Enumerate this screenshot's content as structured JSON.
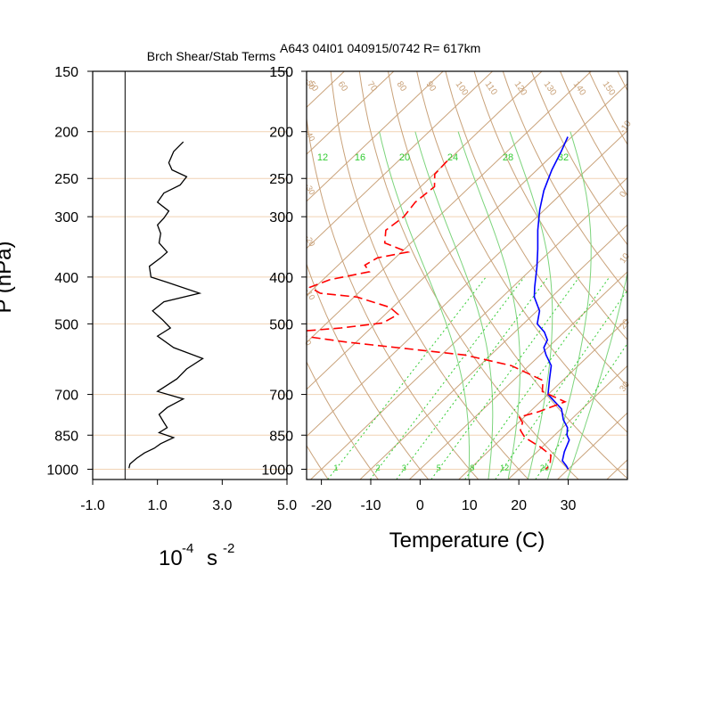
{
  "chart_data": [
    {
      "type": "line",
      "title": "Brch Shear/Stab Terms",
      "ylabel": "P (hPa)",
      "xunit_base": "10",
      "xunit_exp": "-4",
      "xunit_s": "s",
      "xunit_sexp": "-2",
      "xlim": [
        -1.0,
        5.0
      ],
      "ylim": [
        1050,
        150
      ],
      "xticks": [
        "-1.0",
        "1.0",
        "3.0",
        "5.0"
      ],
      "xtick_values": [
        -1.0,
        1.0,
        3.0,
        5.0
      ],
      "yticks": [
        "150",
        "200",
        "250",
        "300",
        "400",
        "500",
        "700",
        "850",
        "1000"
      ],
      "ytick_values": [
        150,
        200,
        250,
        300,
        400,
        500,
        700,
        850,
        1000
      ],
      "reference_line_x": 0,
      "series": [
        {
          "color": "#000000",
          "points": [
            [
              1.8,
              210
            ],
            [
              1.5,
              220
            ],
            [
              1.35,
              232
            ],
            [
              1.45,
              240
            ],
            [
              1.9,
              248
            ],
            [
              1.7,
              258
            ],
            [
              1.2,
              268
            ],
            [
              1.0,
              280
            ],
            [
              1.35,
              292
            ],
            [
              1.2,
              302
            ],
            [
              1.0,
              312
            ],
            [
              1.1,
              325
            ],
            [
              1.05,
              340
            ],
            [
              1.3,
              355
            ],
            [
              1.1,
              365
            ],
            [
              0.75,
              380
            ],
            [
              0.8,
              400
            ],
            [
              1.3,
              410
            ],
            [
              2.3,
              432
            ],
            [
              1.2,
              450
            ],
            [
              0.85,
              470
            ],
            [
              1.15,
              490
            ],
            [
              1.4,
              510
            ],
            [
              1.0,
              530
            ],
            [
              1.5,
              560
            ],
            [
              2.4,
              590
            ],
            [
              1.9,
              620
            ],
            [
              1.6,
              650
            ],
            [
              1.0,
              690
            ],
            [
              1.8,
              715
            ],
            [
              1.3,
              745
            ],
            [
              1.05,
              770
            ],
            [
              1.2,
              800
            ],
            [
              1.3,
              820
            ],
            [
              1.05,
              840
            ],
            [
              1.5,
              860
            ],
            [
              1.1,
              885
            ],
            [
              0.9,
              905
            ],
            [
              0.6,
              925
            ],
            [
              0.35,
              950
            ],
            [
              0.15,
              975
            ],
            [
              0.12,
              995
            ]
          ]
        }
      ]
    },
    {
      "type": "line",
      "title": "A643 04I01 040915/0742 R= 617km",
      "xlabel": "Temperature (C)",
      "xlim": [
        -23,
        42
      ],
      "ylim": [
        1050,
        150
      ],
      "xticks": [
        "-20",
        "-10",
        "0",
        "10",
        "20",
        "30"
      ],
      "xtick_values": [
        -20,
        -10,
        0,
        10,
        20,
        30
      ],
      "yticks": [
        "150",
        "200",
        "250",
        "300",
        "400",
        "500",
        "700",
        "850",
        "1000"
      ],
      "ytick_values": [
        150,
        200,
        250,
        300,
        400,
        500,
        700,
        850,
        1000
      ],
      "grid": "skew-T log-P: isobars, isotherms, dry adiabats, moist adiabats, mixing ratio lines",
      "mixing_ratio_labels": [
        "1",
        "2",
        "3",
        "5",
        "8",
        "12",
        "20"
      ],
      "mixing_ratio_values": [
        1,
        2,
        3,
        5,
        8,
        12,
        20
      ],
      "moist_adiabat_labels": [
        "12",
        "16",
        "20",
        "24",
        "28",
        "32"
      ],
      "moist_adiabat_values": [
        12,
        16,
        20,
        24,
        28,
        32
      ],
      "top_theta_labels": [
        "50",
        "60",
        "70",
        "80",
        "90",
        "100",
        "110",
        "120",
        "130",
        "140",
        "150"
      ],
      "top_theta_values": [
        50,
        60,
        70,
        80,
        90,
        100,
        110,
        120,
        130,
        140,
        150
      ],
      "right_temp_labels": [
        "-10",
        "0",
        "10",
        "20",
        "30"
      ],
      "right_temp_values": [
        -10,
        0,
        10,
        20,
        30
      ],
      "left_temp_labels": [
        "-50",
        "-40",
        "-30",
        "-20",
        "-10",
        "0"
      ],
      "left_temp_values": [
        -50,
        -40,
        -30,
        -20,
        -10,
        0
      ],
      "colors": {
        "grid": "#c9a27a",
        "isobar": "#f0d2b4",
        "moist": "#7cd47c",
        "mixing": "#33cc33",
        "temperature": "#0000ff",
        "dewpoint": "#ff0000"
      },
      "series": [
        {
          "name": "temperature",
          "color": "#0000ff",
          "dash": "none",
          "points": [
            [
              -40.8,
              205
            ],
            [
              -39,
              220
            ],
            [
              -37,
              240
            ],
            [
              -34.2,
              265
            ],
            [
              -31,
              290
            ],
            [
              -27,
              320
            ],
            [
              -23,
              350
            ],
            [
              -19.5,
              380
            ],
            [
              -15.5,
              420
            ],
            [
              -13.5,
              440
            ],
            [
              -9.5,
              470
            ],
            [
              -7.2,
              500
            ],
            [
              -4.0,
              520
            ],
            [
              -1.7,
              540
            ],
            [
              -0.8,
              560
            ],
            [
              1.2,
              580
            ],
            [
              4.5,
              610
            ],
            [
              7.0,
              650
            ],
            [
              10.0,
              700
            ],
            [
              15.8,
              750
            ],
            [
              18.5,
              790
            ],
            [
              21.0,
              820
            ],
            [
              22.5,
              850
            ],
            [
              24.0,
              870
            ],
            [
              25.5,
              920
            ],
            [
              27.0,
              960
            ],
            [
              29.0,
              985
            ],
            [
              30.0,
              1000
            ]
          ]
        },
        {
          "name": "dewpoint",
          "color": "#ff0000",
          "dash": "10,5",
          "points": [
            [
              -60.1,
              230
            ],
            [
              -59.8,
              245
            ],
            [
              -57.2,
              260
            ],
            [
              -57.8,
              280
            ],
            [
              -57.0,
              300
            ],
            [
              -57.8,
              320
            ],
            [
              -55.3,
              340
            ],
            [
              -48.7,
              355
            ],
            [
              -53.6,
              365
            ],
            [
              -54.6,
              378
            ],
            [
              -52.3,
              390
            ],
            [
              -58.6,
              405
            ],
            [
              -61.0,
              420
            ],
            [
              -57.7,
              432
            ],
            [
              -49.4,
              440
            ],
            [
              -40.6,
              462
            ],
            [
              -37.4,
              478
            ],
            [
              -38.7,
              498
            ],
            [
              -46.1,
              510
            ],
            [
              -57.3,
              522
            ],
            [
              -42.2,
              545
            ],
            [
              -15.3,
              580
            ],
            [
              -3.6,
              610
            ],
            [
              6.0,
              655
            ],
            [
              8.2,
              690
            ],
            [
              15.0,
              725
            ],
            [
              11.8,
              760
            ],
            [
              9.0,
              780
            ],
            [
              10.8,
              800
            ],
            [
              12.0,
              830
            ],
            [
              14.5,
              860
            ],
            [
              19.7,
              900
            ],
            [
              23.5,
              935
            ],
            [
              25.2,
              975
            ],
            [
              25.5,
              1000
            ]
          ]
        }
      ]
    }
  ]
}
